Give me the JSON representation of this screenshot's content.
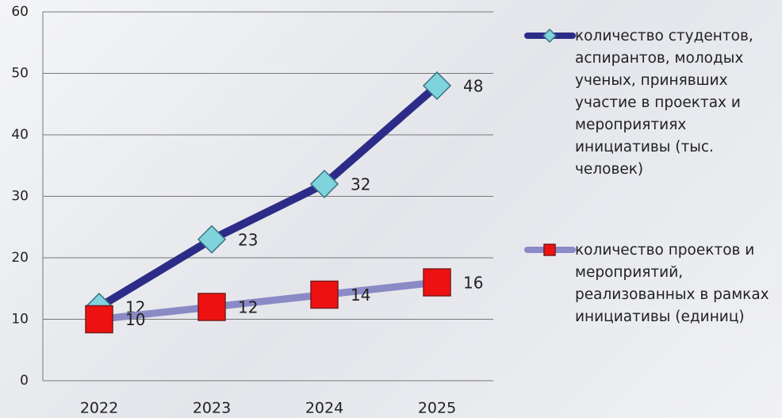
{
  "chart_data": {
    "type": "line",
    "categories": [
      "2022",
      "2023",
      "2024",
      "2025"
    ],
    "series": [
      {
        "name": "количество студентов, аспирантов, молодых ученых, принявших участие в проектах и мероприятиях инициативы (тыс. человек)",
        "color": "#2c2c88",
        "marker": "diamond",
        "marker_color": "#7fd3dc",
        "values": [
          12,
          23,
          32,
          48
        ]
      },
      {
        "name": "количество проектов и мероприятий, реализованных в рамках инициативы (единиц)",
        "color": "#8a8ac6",
        "marker": "square",
        "marker_color": "#ee1111",
        "values": [
          10,
          12,
          14,
          16
        ]
      }
    ],
    "ylim": [
      0,
      60
    ],
    "yticks": [
      0,
      10,
      20,
      30,
      40,
      50,
      60
    ],
    "grid": true,
    "legend": "right"
  }
}
